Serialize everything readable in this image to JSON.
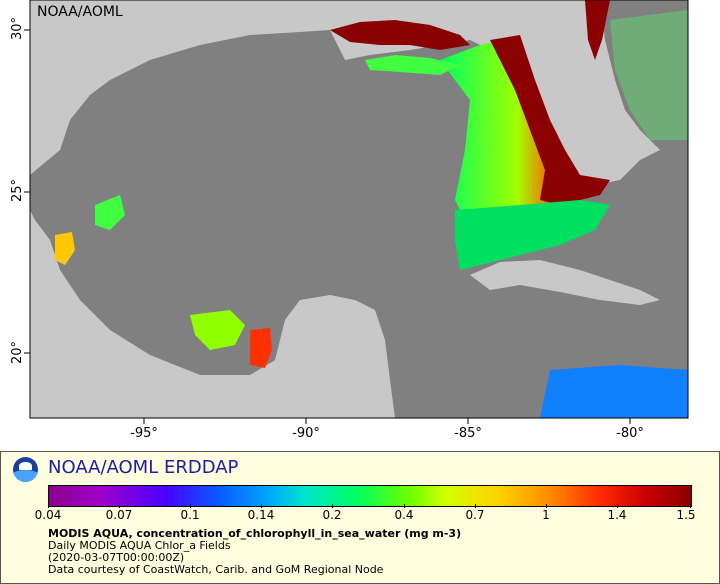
{
  "map": {
    "watermark": "NOAA/AOML",
    "x_ticks": [
      "-95°",
      "-90°",
      "-85°",
      "-80°"
    ],
    "y_ticks": [
      "30°",
      "25°",
      "20°"
    ]
  },
  "legend": {
    "title": "NOAA/AOML ERDDAP",
    "colorbar_labels": [
      "0.04",
      "0.07",
      "0.1",
      "0.14",
      "0.2",
      "0.4",
      "0.7",
      "1",
      "1.4",
      "1.5"
    ],
    "variable": "MODIS AQUA, concentration_of_chlorophyll_in_sea_water (mg m-3)",
    "dataset": "Daily MODIS AQUA Chlor_a Fields",
    "time": "(2020-03-07T00:00:00Z)",
    "credit": "Data courtesy of CoastWatch, Carib. and GoM Regional Node"
  },
  "colors": {
    "land": "#c8c8c8",
    "ocean_no_data": "#808080",
    "legend_background": "#ffffe0",
    "title_color": "#1c1ca8"
  },
  "icons": {
    "logo": "noaa-logo-icon"
  }
}
